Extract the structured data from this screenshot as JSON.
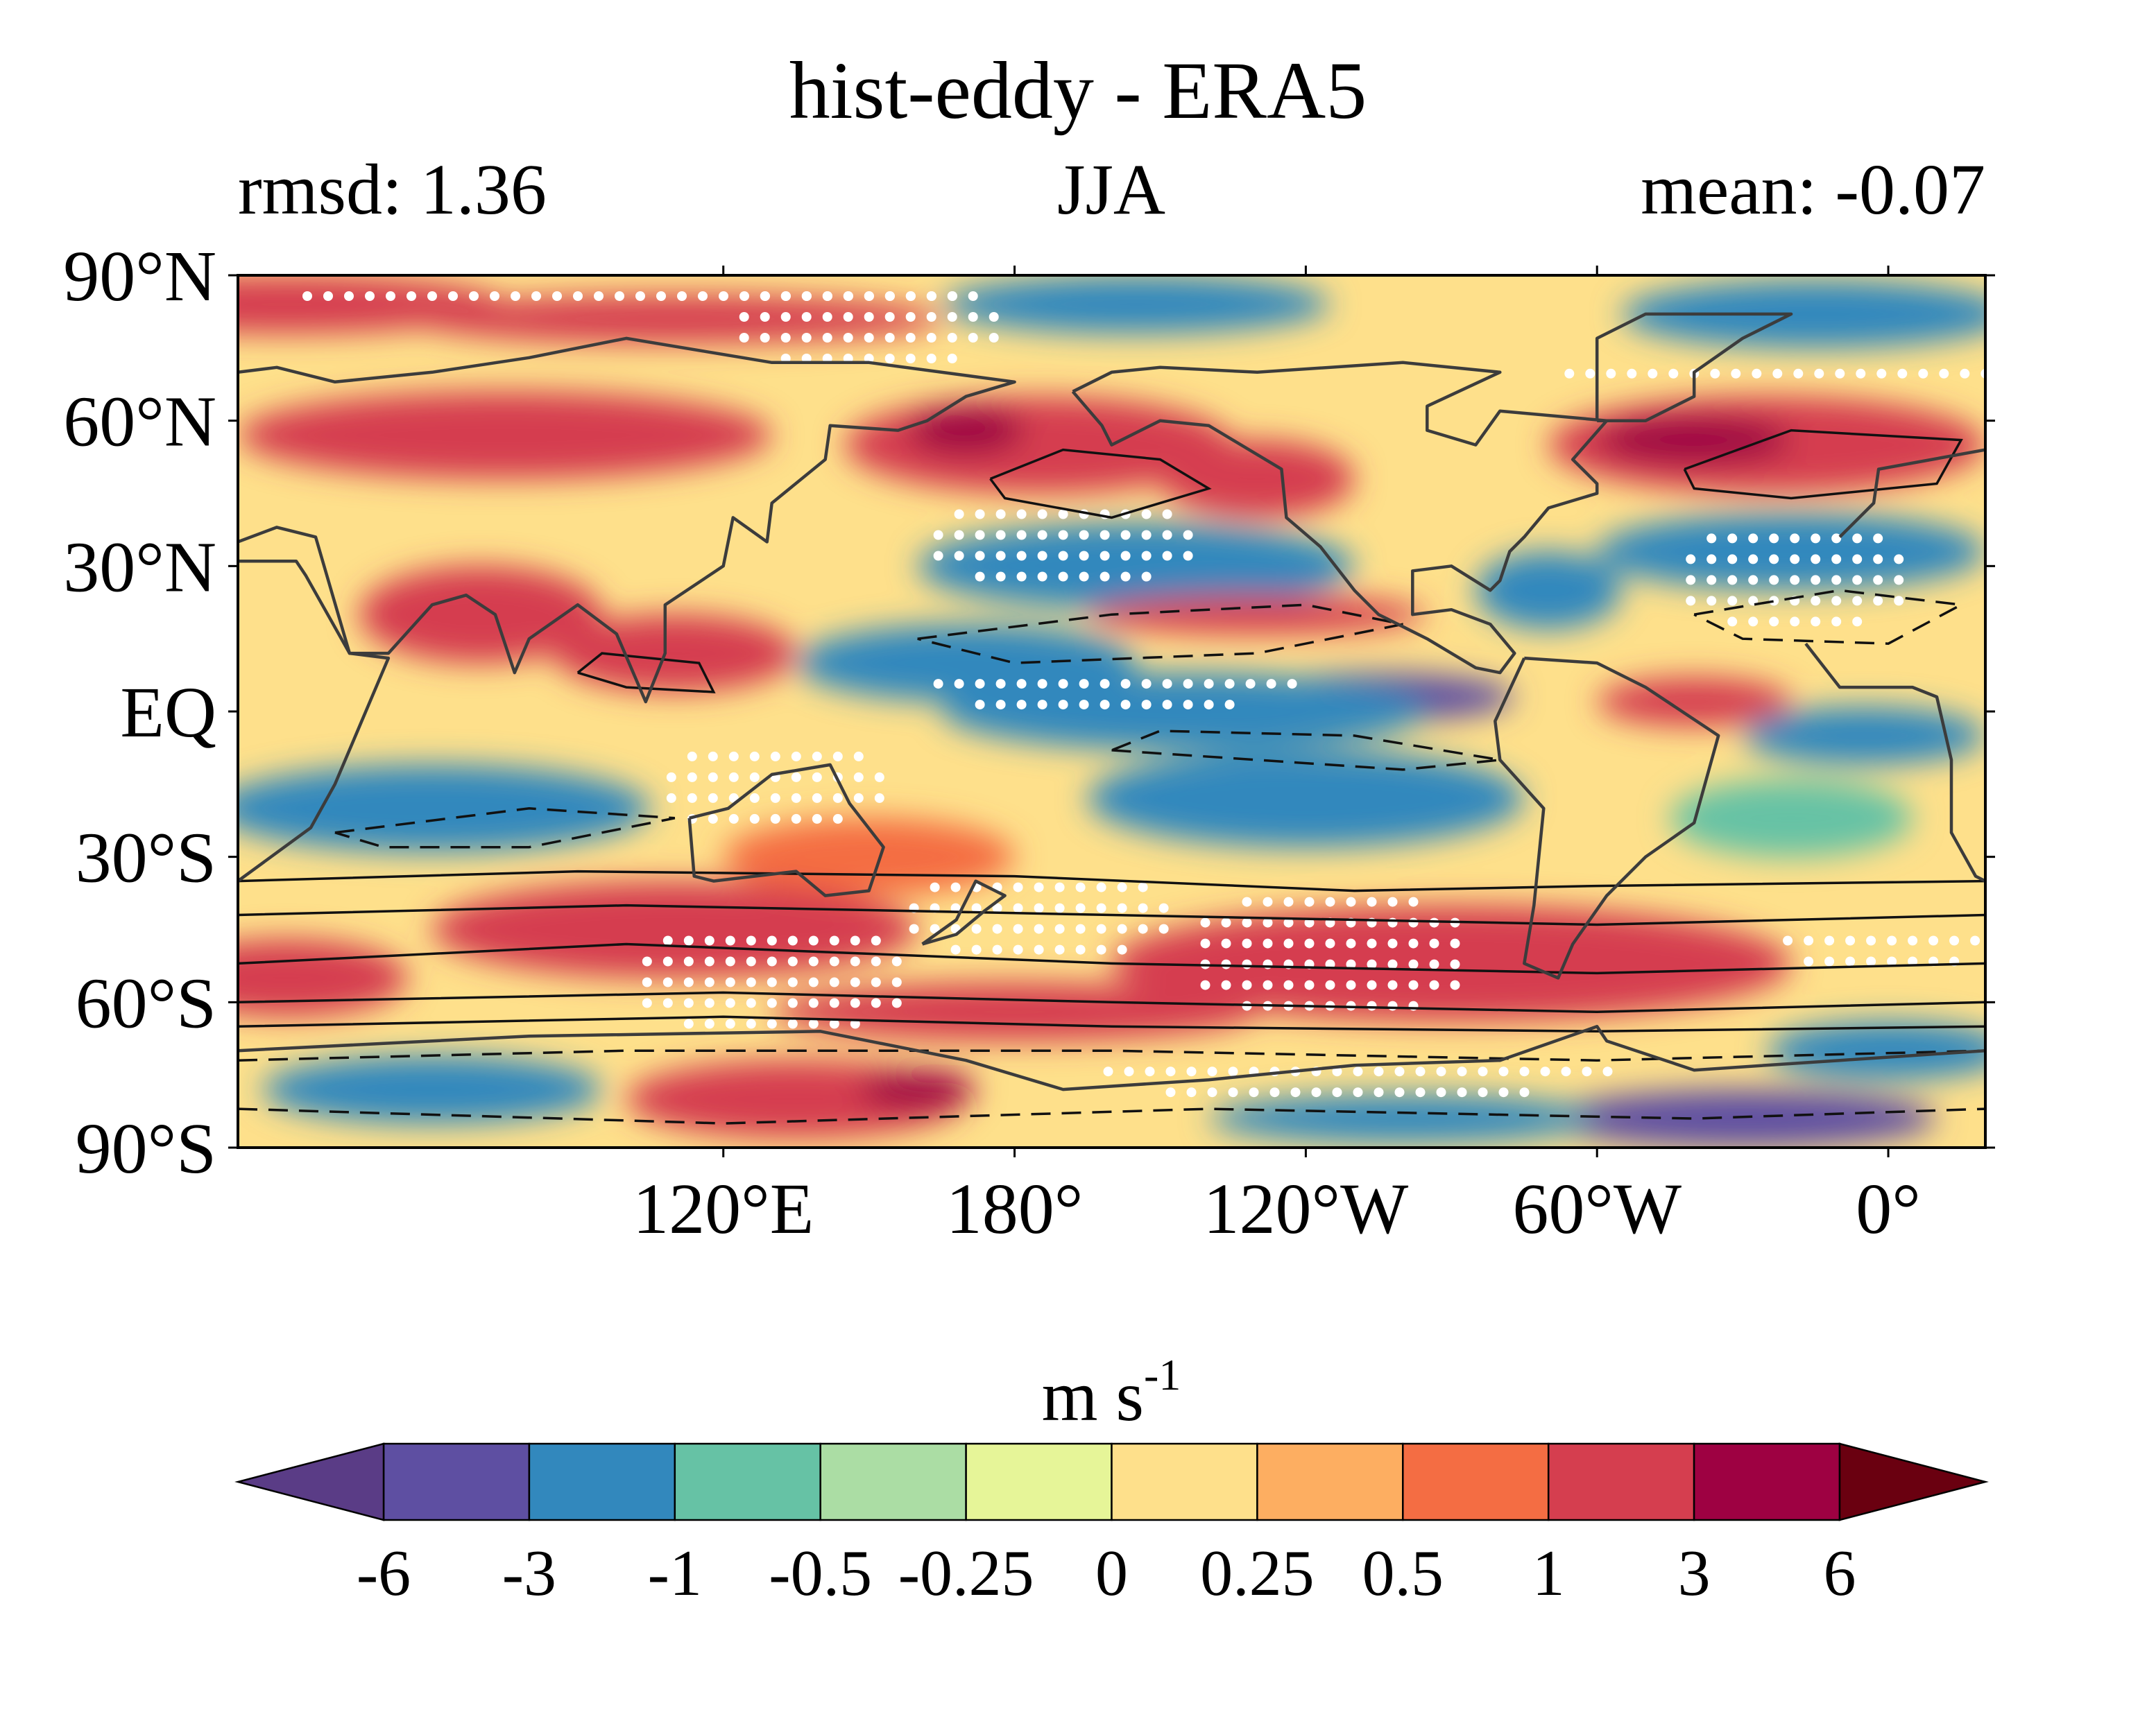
{
  "figure": {
    "title": "hist-eddy - ERA5",
    "subtitle_left": "rmsd: 1.36",
    "subtitle_center": "JJA",
    "subtitle_right": "mean: -0.07"
  },
  "chart_data": {
    "type": "heatmap",
    "title": "hist-eddy - ERA5",
    "season": "JJA",
    "rmsd": 1.36,
    "mean": -0.07,
    "x_axis": {
      "range_lon_east": [
        20,
        380
      ],
      "ticks": [
        {
          "lon": 120,
          "label": "120°E"
        },
        {
          "lon": 180,
          "label": "180°"
        },
        {
          "lon": 240,
          "label": "120°W"
        },
        {
          "lon": 300,
          "label": "60°W"
        },
        {
          "lon": 360,
          "label": "0°"
        }
      ]
    },
    "y_axis": {
      "range_lat": [
        -90,
        90
      ],
      "ticks": [
        {
          "lat": 90,
          "label": "90°N"
        },
        {
          "lat": 60,
          "label": "60°N"
        },
        {
          "lat": 30,
          "label": "30°N"
        },
        {
          "lat": 0,
          "label": "EQ"
        },
        {
          "lat": -30,
          "label": "30°S"
        },
        {
          "lat": -60,
          "label": "60°S"
        },
        {
          "lat": -90,
          "label": "90°S"
        }
      ]
    },
    "colorbar": {
      "unit_base": "m s",
      "unit_exp": "-1",
      "extend": "both",
      "boundaries": [
        "-6",
        "-3",
        "-1",
        "-0.5",
        "-0.25",
        "0",
        "0.25",
        "0.5",
        "1",
        "3",
        "6"
      ],
      "colors": [
        "#5e4fa2",
        "#3288bd",
        "#66c2a5",
        "#abdda4",
        "#e6f598",
        "#fee08b",
        "#fdae61",
        "#f46d43",
        "#d53e4f",
        "#9e0142"
      ],
      "under_color": "#5a3c86",
      "over_color": "#6a0010"
    },
    "value_blobs": [
      {
        "lon": 30,
        "lat": 84,
        "rlon": 45,
        "rlat": 6,
        "v": 2
      },
      {
        "lon": 110,
        "lat": 81,
        "rlon": 55,
        "rlat": 5,
        "v": 1.5
      },
      {
        "lon": 205,
        "lat": 84,
        "rlon": 40,
        "rlat": 6,
        "v": -2
      },
      {
        "lon": 345,
        "lat": 82,
        "rlon": 40,
        "rlat": 7,
        "v": -2
      },
      {
        "lon": 75,
        "lat": 57,
        "rlon": 55,
        "rlat": 9,
        "v": 2
      },
      {
        "lon": 185,
        "lat": 55,
        "rlon": 40,
        "rlat": 10,
        "v": 2.5
      },
      {
        "lon": 170,
        "lat": 58,
        "rlon": 12,
        "rlat": 5,
        "v": 4
      },
      {
        "lon": 335,
        "lat": 55,
        "rlon": 45,
        "rlat": 10,
        "v": 2.5
      },
      {
        "lon": 320,
        "lat": 56,
        "rlon": 20,
        "rlat": 5,
        "v": 4.5
      },
      {
        "lon": 230,
        "lat": 48,
        "rlon": 20,
        "rlat": 8,
        "v": 1.5
      },
      {
        "lon": 205,
        "lat": 30,
        "rlon": 45,
        "rlat": 9,
        "v": -2
      },
      {
        "lon": 340,
        "lat": 33,
        "rlon": 40,
        "rlat": 8,
        "v": -2
      },
      {
        "lon": 290,
        "lat": 25,
        "rlon": 15,
        "rlat": 8,
        "v": -1.5
      },
      {
        "lon": 70,
        "lat": 20,
        "rlon": 25,
        "rlat": 10,
        "v": 2.5
      },
      {
        "lon": 110,
        "lat": 12,
        "rlon": 25,
        "rlat": 8,
        "v": 2
      },
      {
        "lon": 170,
        "lat": 10,
        "rlon": 35,
        "rlat": 8,
        "v": -1.5
      },
      {
        "lon": 255,
        "lat": 3,
        "rlon": 28,
        "rlat": 5,
        "v": -3.5
      },
      {
        "lon": 215,
        "lat": 0,
        "rlon": 50,
        "rlat": 8,
        "v": -2
      },
      {
        "lon": 230,
        "lat": 20,
        "rlon": 35,
        "rlat": 4,
        "v": 1
      },
      {
        "lon": 320,
        "lat": 2,
        "rlon": 20,
        "rlat": 5,
        "v": 2
      },
      {
        "lon": 355,
        "lat": -5,
        "rlon": 25,
        "rlat": 6,
        "v": -2
      },
      {
        "lon": 60,
        "lat": -20,
        "rlon": 45,
        "rlat": 9,
        "v": -2
      },
      {
        "lon": 240,
        "lat": -18,
        "rlon": 45,
        "rlat": 10,
        "v": -2
      },
      {
        "lon": 340,
        "lat": -22,
        "rlon": 25,
        "rlat": 8,
        "v": -1
      },
      {
        "lon": 150,
        "lat": -30,
        "rlon": 30,
        "rlat": 8,
        "v": 0.6
      },
      {
        "lon": 110,
        "lat": -45,
        "rlon": 50,
        "rlat": 10,
        "v": 2
      },
      {
        "lon": 270,
        "lat": -52,
        "rlon": 70,
        "rlat": 12,
        "v": 2.5
      },
      {
        "lon": 180,
        "lat": -62,
        "rlon": 50,
        "rlat": 6,
        "v": 2
      },
      {
        "lon": 30,
        "lat": -55,
        "rlon": 25,
        "rlat": 8,
        "v": 1.5
      },
      {
        "lon": 60,
        "lat": -78,
        "rlon": 35,
        "rlat": 7,
        "v": -2.5
      },
      {
        "lon": 135,
        "lat": -80,
        "rlon": 35,
        "rlat": 8,
        "v": 2.5
      },
      {
        "lon": 160,
        "lat": -78,
        "rlon": 12,
        "rlat": 4,
        "v": 4.5
      },
      {
        "lon": 330,
        "lat": -84,
        "rlon": 40,
        "rlat": 6,
        "v": -3.5
      },
      {
        "lon": 260,
        "lat": -84,
        "rlon": 40,
        "rlat": 5,
        "v": -2
      },
      {
        "lon": 360,
        "lat": -70,
        "rlon": 25,
        "rlat": 6,
        "v": -2
      }
    ],
    "stippled_regions": [
      {
        "lon": 100,
        "lat": 86,
        "rlon": 70,
        "rlat": 4
      },
      {
        "lon": 150,
        "lat": 80,
        "rlon": 30,
        "rlat": 10
      },
      {
        "lon": 340,
        "lat": 70,
        "rlon": 50,
        "rlat": 4
      },
      {
        "lon": 190,
        "lat": 35,
        "rlon": 30,
        "rlat": 10
      },
      {
        "lon": 340,
        "lat": 28,
        "rlon": 25,
        "rlat": 12
      },
      {
        "lon": 130,
        "lat": -15,
        "rlon": 25,
        "rlat": 10
      },
      {
        "lon": 185,
        "lat": -42,
        "rlon": 30,
        "rlat": 10
      },
      {
        "lon": 130,
        "lat": -55,
        "rlon": 30,
        "rlat": 12
      },
      {
        "lon": 245,
        "lat": -50,
        "rlon": 30,
        "rlat": 15
      },
      {
        "lon": 250,
        "lat": -75,
        "rlon": 55,
        "rlat": 5
      },
      {
        "lon": 360,
        "lat": -48,
        "rlon": 25,
        "rlat": 5
      },
      {
        "lon": 200,
        "lat": 5,
        "rlon": 40,
        "rlat": 5
      }
    ],
    "solid_contours": [
      [
        [
          175,
          48
        ],
        [
          190,
          54
        ],
        [
          210,
          52
        ],
        [
          220,
          46
        ],
        [
          200,
          40
        ],
        [
          178,
          44
        ],
        [
          175,
          48
        ]
      ],
      [
        [
          318,
          50
        ],
        [
          340,
          58
        ],
        [
          375,
          56
        ],
        [
          370,
          47
        ],
        [
          340,
          44
        ],
        [
          320,
          46
        ],
        [
          318,
          50
        ]
      ],
      [
        [
          20,
          -35
        ],
        [
          90,
          -33
        ],
        [
          180,
          -34
        ],
        [
          250,
          -37
        ],
        [
          300,
          -36
        ],
        [
          380,
          -35
        ]
      ],
      [
        [
          20,
          -42
        ],
        [
          100,
          -40
        ],
        [
          200,
          -42
        ],
        [
          300,
          -44
        ],
        [
          380,
          -42
        ]
      ],
      [
        [
          20,
          -52
        ],
        [
          100,
          -48
        ],
        [
          200,
          -52
        ],
        [
          300,
          -54
        ],
        [
          380,
          -52
        ]
      ],
      [
        [
          20,
          -60
        ],
        [
          120,
          -58
        ],
        [
          200,
          -60
        ],
        [
          300,
          -62
        ],
        [
          380,
          -60
        ]
      ],
      [
        [
          20,
          -65
        ],
        [
          120,
          -63
        ],
        [
          200,
          -65
        ],
        [
          300,
          -66
        ],
        [
          380,
          -65
        ]
      ],
      [
        [
          90,
          8
        ],
        [
          100,
          5
        ],
        [
          118,
          4
        ],
        [
          115,
          10
        ],
        [
          95,
          12
        ],
        [
          90,
          8
        ]
      ]
    ],
    "dashed_contours": [
      [
        [
          160,
          15
        ],
        [
          200,
          20
        ],
        [
          240,
          22
        ],
        [
          260,
          18
        ],
        [
          230,
          12
        ],
        [
          180,
          10
        ],
        [
          160,
          15
        ]
      ],
      [
        [
          320,
          20
        ],
        [
          350,
          25
        ],
        [
          375,
          22
        ],
        [
          360,
          14
        ],
        [
          330,
          15
        ],
        [
          320,
          20
        ]
      ],
      [
        [
          200,
          -8
        ],
        [
          260,
          -12
        ],
        [
          280,
          -10
        ],
        [
          250,
          -5
        ],
        [
          210,
          -4
        ],
        [
          200,
          -8
        ]
      ],
      [
        [
          40,
          -25
        ],
        [
          80,
          -20
        ],
        [
          110,
          -22
        ],
        [
          80,
          -28
        ],
        [
          50,
          -28
        ],
        [
          40,
          -25
        ]
      ],
      [
        [
          20,
          -72
        ],
        [
          100,
          -70
        ],
        [
          200,
          -70
        ],
        [
          300,
          -72
        ],
        [
          380,
          -70
        ]
      ],
      [
        [
          20,
          -82
        ],
        [
          120,
          -85
        ],
        [
          220,
          -82
        ],
        [
          320,
          -84
        ],
        [
          380,
          -82
        ]
      ]
    ],
    "coastlines": [
      [
        [
          20,
          35
        ],
        [
          28,
          38
        ],
        [
          36,
          36
        ],
        [
          43,
          12
        ],
        [
          51,
          12
        ],
        [
          60,
          22
        ],
        [
          67,
          24
        ],
        [
          73,
          20
        ],
        [
          77,
          8
        ],
        [
          80,
          15
        ],
        [
          90,
          22
        ],
        [
          98,
          16
        ],
        [
          104,
          2
        ],
        [
          108,
          12
        ],
        [
          108,
          22
        ],
        [
          120,
          30
        ],
        [
          122,
          40
        ],
        [
          129,
          35
        ],
        [
          130,
          43
        ],
        [
          141,
          52
        ],
        [
          142,
          59
        ],
        [
          156,
          58
        ],
        [
          162,
          60
        ],
        [
          170,
          65
        ],
        [
          180,
          68
        ],
        [
          150,
          72
        ],
        [
          130,
          72
        ],
        [
          100,
          77
        ],
        [
          80,
          73
        ],
        [
          60,
          70
        ],
        [
          40,
          68
        ],
        [
          28,
          71
        ],
        [
          20,
          70
        ]
      ],
      [
        [
          20,
          31
        ],
        [
          32,
          31
        ],
        [
          34,
          28
        ],
        [
          43,
          12
        ],
        [
          51,
          11
        ],
        [
          40,
          -15
        ],
        [
          35,
          -24
        ],
        [
          20,
          -35
        ]
      ],
      [
        [
          113,
          -22
        ],
        [
          114,
          -34
        ],
        [
          118,
          -35
        ],
        [
          135,
          -33
        ],
        [
          141,
          -38
        ],
        [
          150,
          -37
        ],
        [
          153,
          -28
        ],
        [
          146,
          -19
        ],
        [
          142,
          -11
        ],
        [
          136,
          -12
        ],
        [
          130,
          -13
        ],
        [
          121,
          -20
        ],
        [
          113,
          -22
        ]
      ],
      [
        [
          192,
          66
        ],
        [
          198,
          59
        ],
        [
          200,
          55
        ],
        [
          210,
          60
        ],
        [
          220,
          59
        ],
        [
          235,
          50
        ],
        [
          236,
          40
        ],
        [
          243,
          34
        ],
        [
          250,
          25
        ],
        [
          255,
          20
        ],
        [
          265,
          15
        ],
        [
          275,
          9
        ],
        [
          280,
          8
        ],
        [
          283,
          12
        ],
        [
          278,
          18
        ],
        [
          270,
          21
        ],
        [
          262,
          20
        ],
        [
          262,
          29
        ],
        [
          270,
          30
        ],
        [
          278,
          25
        ],
        [
          280,
          27
        ],
        [
          282,
          33
        ],
        [
          285,
          36
        ],
        [
          290,
          42
        ],
        [
          300,
          45
        ],
        [
          300,
          47
        ],
        [
          295,
          52
        ],
        [
          302,
          60
        ],
        [
          280,
          62
        ],
        [
          275,
          55
        ],
        [
          265,
          58
        ],
        [
          265,
          63
        ],
        [
          280,
          70
        ],
        [
          260,
          72
        ],
        [
          230,
          70
        ],
        [
          210,
          71
        ],
        [
          200,
          70
        ],
        [
          192,
          66
        ]
      ],
      [
        [
          285,
          11
        ],
        [
          300,
          10
        ],
        [
          310,
          5
        ],
        [
          325,
          -5
        ],
        [
          320,
          -23
        ],
        [
          310,
          -30
        ],
        [
          302,
          -38
        ],
        [
          295,
          -48
        ],
        [
          292,
          -55
        ],
        [
          285,
          -52
        ],
        [
          287,
          -40
        ],
        [
          289,
          -20
        ],
        [
          280,
          -10
        ],
        [
          279,
          -2
        ],
        [
          285,
          11
        ]
      ],
      [
        [
          300,
          60
        ],
        [
          310,
          60
        ],
        [
          320,
          65
        ],
        [
          320,
          70
        ],
        [
          330,
          77
        ],
        [
          340,
          82
        ],
        [
          310,
          82
        ],
        [
          300,
          77
        ],
        [
          300,
          70
        ],
        [
          300,
          60
        ]
      ],
      [
        [
          343,
          14
        ],
        [
          350,
          5
        ],
        [
          365,
          5
        ],
        [
          370,
          3
        ],
        [
          373,
          -10
        ],
        [
          373,
          -25
        ],
        [
          378,
          -34
        ],
        [
          380,
          -35
        ]
      ],
      [
        [
          350,
          36
        ],
        [
          357,
          43
        ],
        [
          358,
          50
        ],
        [
          380,
          54
        ]
      ],
      [
        [
          161,
          -48
        ],
        [
          168,
          -46
        ],
        [
          174,
          -41
        ],
        [
          178,
          -38
        ],
        [
          172,
          -35
        ],
        [
          168,
          -43
        ],
        [
          161,
          -48
        ]
      ],
      [
        [
          20,
          -70
        ],
        [
          80,
          -67
        ],
        [
          140,
          -66
        ],
        [
          170,
          -72
        ],
        [
          190,
          -78
        ],
        [
          220,
          -76
        ],
        [
          250,
          -73
        ],
        [
          280,
          -72
        ],
        [
          300,
          -65
        ],
        [
          302,
          -68
        ],
        [
          320,
          -74
        ],
        [
          350,
          -72
        ],
        [
          380,
          -70
        ]
      ]
    ]
  }
}
